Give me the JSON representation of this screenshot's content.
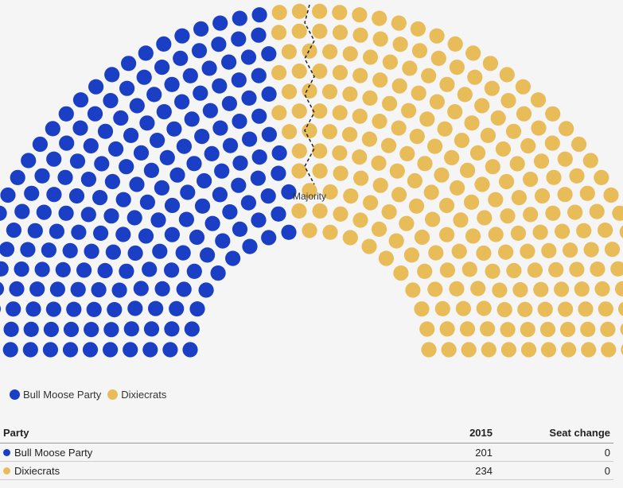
{
  "chart_data": {
    "type": "parliament",
    "title": "",
    "series": [
      {
        "name": "Bull Moose Party",
        "seats": 201,
        "color": "#1a3fc4"
      },
      {
        "name": "Dixiecrats",
        "seats": 234,
        "color": "#e9bc5a"
      }
    ],
    "total_seats": 435,
    "majority_label": "Majority"
  },
  "legend": [
    {
      "label": "Bull Moose Party",
      "color": "#1a3fc4"
    },
    {
      "label": "Dixiecrats",
      "color": "#e9bc5a"
    }
  ],
  "table": {
    "headers": [
      "Party",
      "2015",
      "Seat change"
    ],
    "rows": [
      {
        "party": "Bull Moose Party",
        "value": "201",
        "change": "0",
        "color": "#1a3fc4"
      },
      {
        "party": "Dixiecrats",
        "value": "234",
        "change": "0",
        "color": "#e9bc5a"
      }
    ]
  }
}
